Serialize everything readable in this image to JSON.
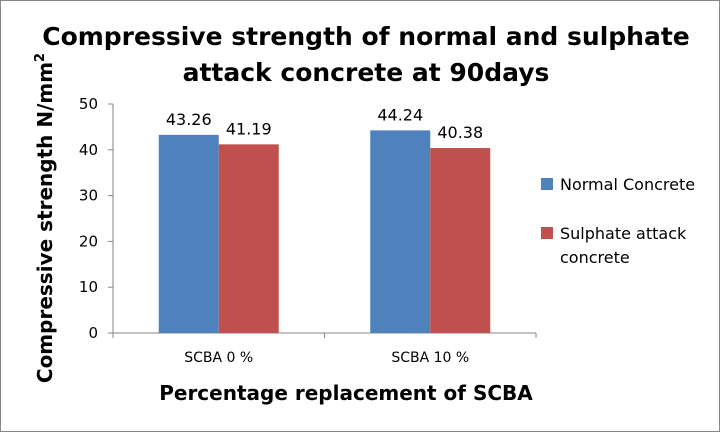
{
  "chart_data": {
    "type": "bar",
    "title_lines": [
      "Compressive strength of normal and sulphate",
      "attack concrete at 90days"
    ],
    "xlabel": "Percentage replacement of SCBA",
    "ylabel": "Compressive strength N/mm",
    "ylabel_sup": "2",
    "categories": [
      "SCBA 0 %",
      "SCBA 10 %"
    ],
    "series": [
      {
        "name": "Normal Concrete",
        "color": "#4F81BD",
        "values": [
          43.26,
          44.24
        ],
        "labels": [
          "43.26",
          "44.24"
        ]
      },
      {
        "name": "Sulphate attack concrete",
        "name_lines": [
          "Sulphate attack",
          "concrete"
        ],
        "color": "#C0504D",
        "values": [
          41.19,
          40.38
        ],
        "labels": [
          "41.19",
          "40.38"
        ]
      }
    ],
    "ylim": [
      0,
      50
    ],
    "yticks": [
      "0",
      "10",
      "20",
      "30",
      "40",
      "50"
    ],
    "grid": false,
    "legend_position": "right"
  }
}
